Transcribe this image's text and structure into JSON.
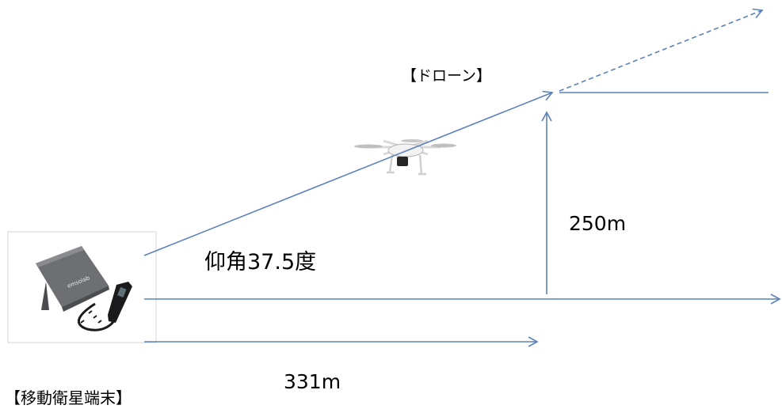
{
  "labels": {
    "drone": "【ドローン】",
    "terminal": "【移動衛星端末】",
    "elevation": "仰角37.5度",
    "height": "250m",
    "distance": "331m"
  },
  "device": {
    "brand": "emsolab"
  },
  "colors": {
    "line": "#5b82b9",
    "text": "#000000",
    "device_body": "#6e6f72",
    "handset": "#1b1b1d",
    "frame": "#d4d4d4"
  }
}
